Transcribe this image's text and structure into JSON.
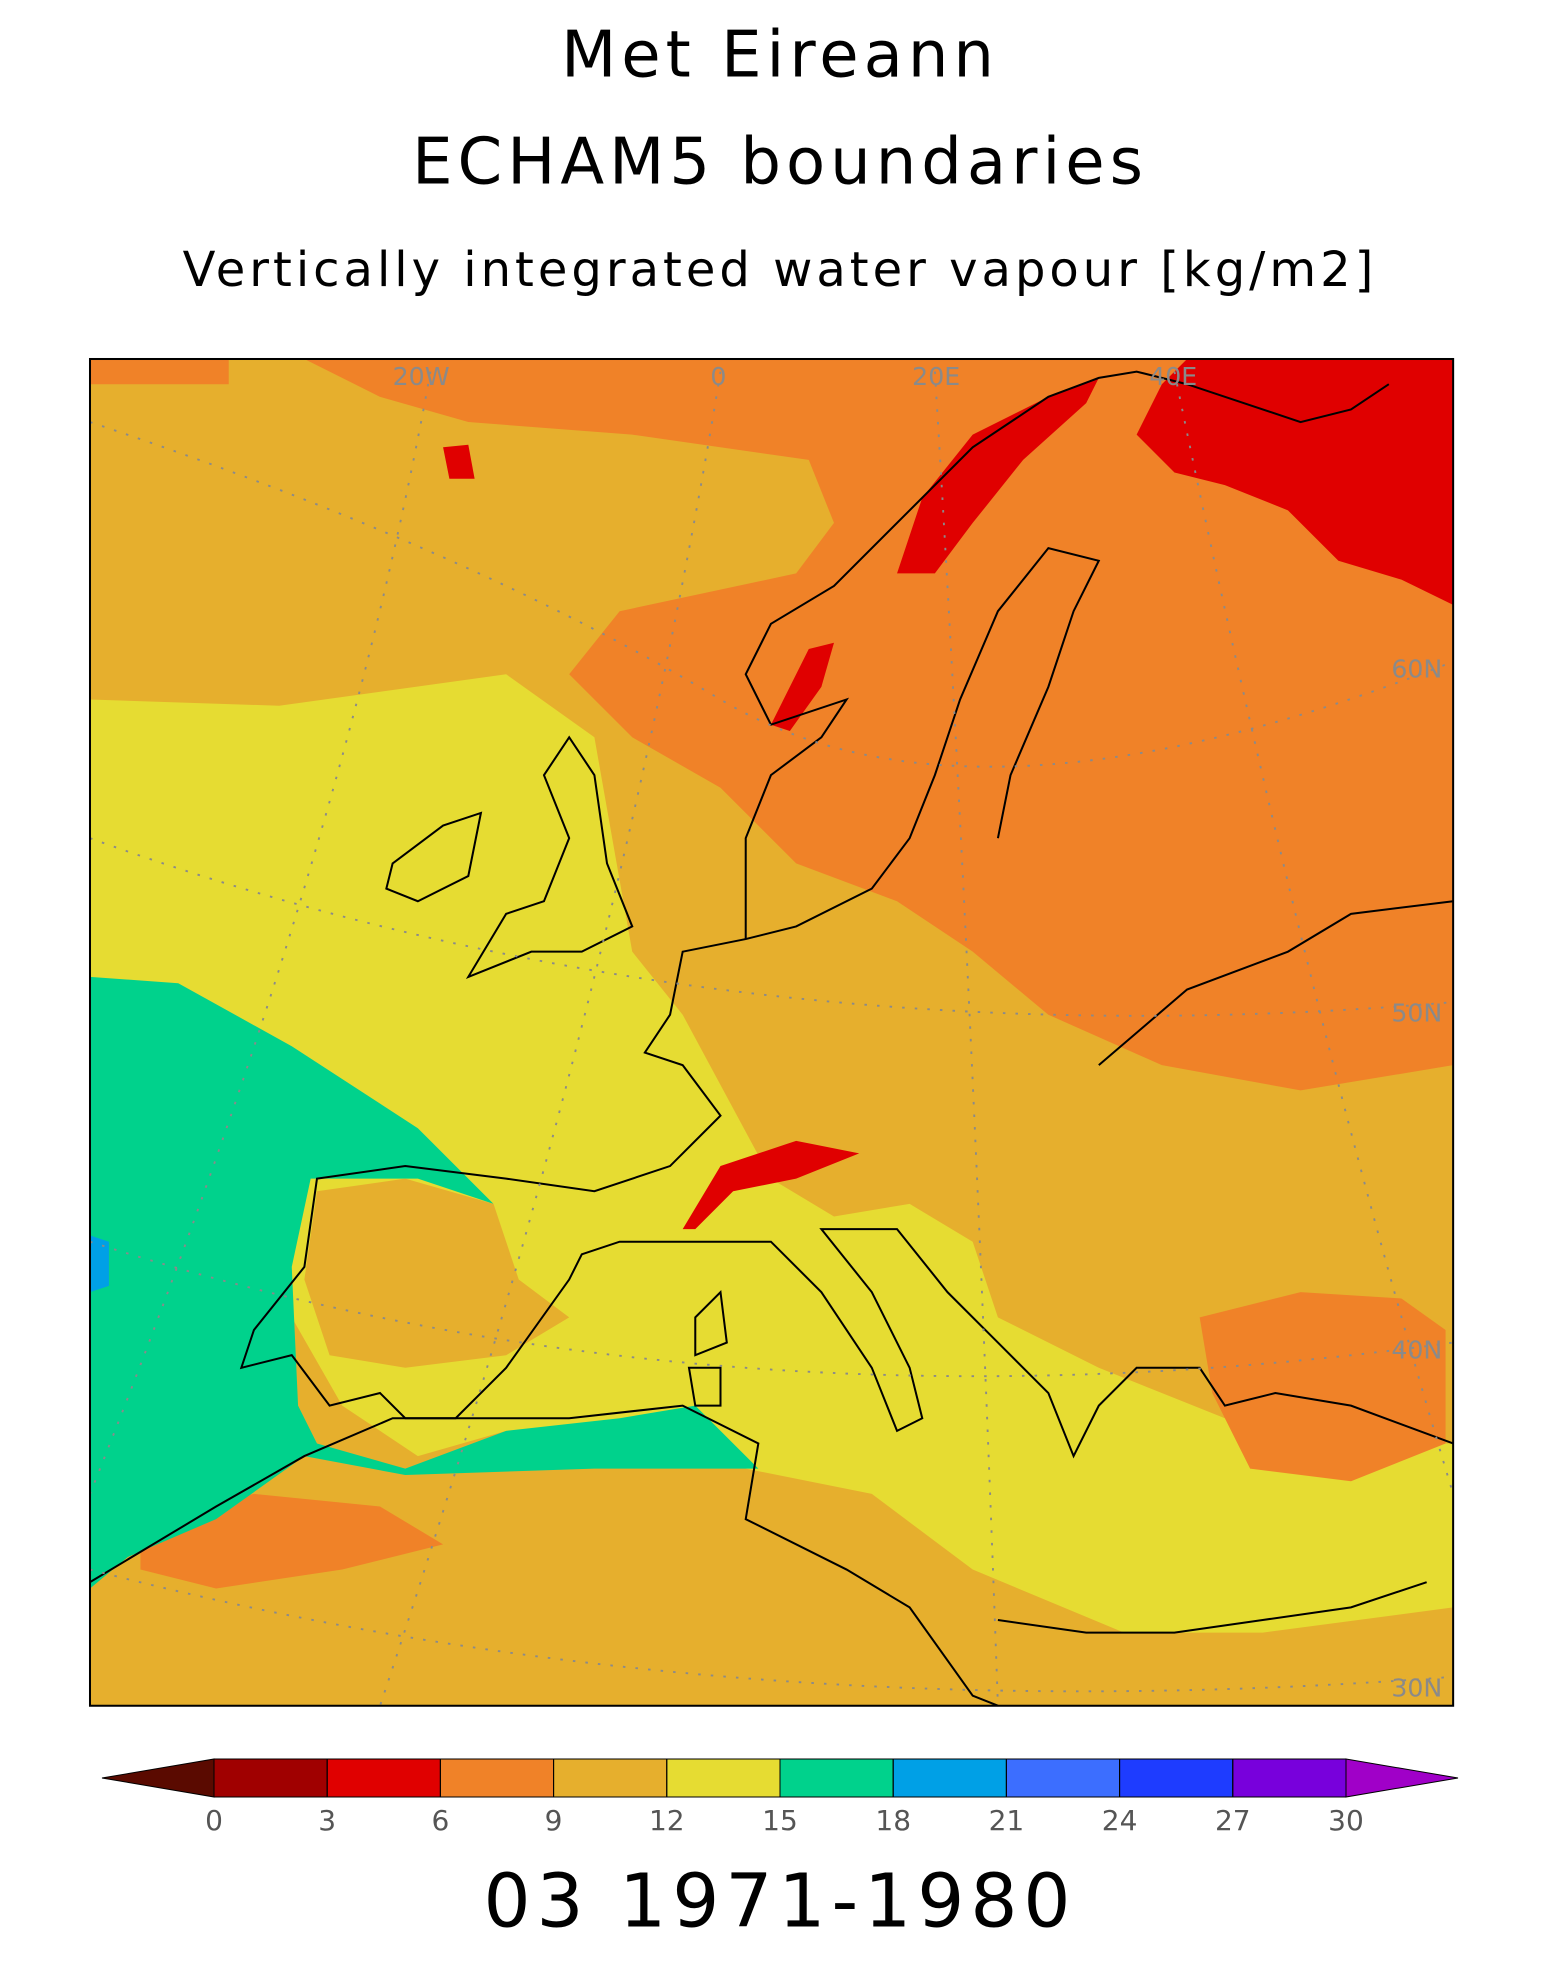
{
  "header": {
    "title": "Met Eireann",
    "subtitle": "ECHAM5 boundaries",
    "field": "Vertically integrated water vapour [kg/m2]"
  },
  "map": {
    "labels": [
      "20W",
      "0",
      "20E",
      "40E",
      "60N",
      "50N",
      "40N",
      "30N"
    ]
  },
  "colorbar": {
    "ticks": [
      0,
      3,
      6,
      9,
      12,
      15,
      18,
      21,
      24,
      27,
      30
    ],
    "colors": [
      "#5a0a00",
      "#a00000",
      "#e00000",
      "#f08228",
      "#e6af2d",
      "#e6dc32",
      "#00d28c",
      "#00a0e6",
      "#3c6eff",
      "#1e3cff",
      "#7800dc",
      "#a000c8"
    ]
  },
  "footer": "03 1971-1980"
}
